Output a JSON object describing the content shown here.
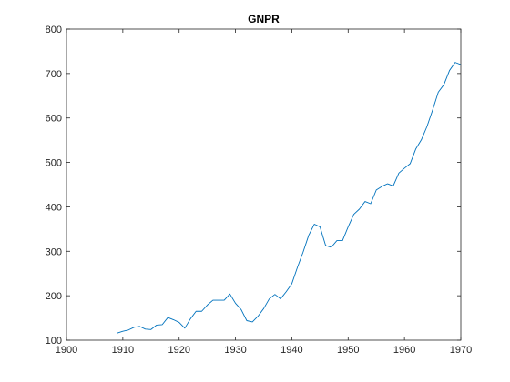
{
  "chart_data": {
    "type": "line",
    "title": "GNPR",
    "xlabel": "",
    "ylabel": "",
    "xlim": [
      1900,
      1970
    ],
    "ylim": [
      100,
      800
    ],
    "xticks": [
      1900,
      1910,
      1920,
      1930,
      1940,
      1950,
      1960,
      1970
    ],
    "yticks": [
      100,
      200,
      300,
      400,
      500,
      600,
      700,
      800
    ],
    "xtick_labels": [
      "1900",
      "1910",
      "1920",
      "1930",
      "1940",
      "1950",
      "1960",
      "1970"
    ],
    "ytick_labels": [
      "100",
      "200",
      "300",
      "400",
      "500",
      "600",
      "700",
      "800"
    ],
    "grid": false,
    "line_color": "#0072BD",
    "series": [
      {
        "x": [
          1909,
          1910,
          1911,
          1912,
          1913,
          1914,
          1915,
          1916,
          1917,
          1918,
          1919,
          1920,
          1921,
          1922,
          1923,
          1924,
          1925,
          1926,
          1927,
          1928,
          1929,
          1930,
          1931,
          1932,
          1933,
          1934,
          1935,
          1936,
          1937,
          1938,
          1939,
          1940,
          1941,
          1942,
          1943,
          1944,
          1945,
          1946,
          1947,
          1948,
          1949,
          1950,
          1951,
          1952,
          1953,
          1954,
          1955,
          1956,
          1957,
          1958,
          1959,
          1960,
          1961,
          1962,
          1963,
          1964,
          1965,
          1966,
          1967,
          1968,
          1969,
          1970
        ],
        "values": [
          116,
          120,
          123,
          129,
          131,
          125,
          124,
          134,
          135,
          151,
          146,
          140,
          127,
          148,
          165,
          165,
          179,
          190,
          190,
          190,
          204,
          183,
          169,
          144,
          141,
          154,
          171,
          193,
          203,
          193,
          209,
          227,
          264,
          298,
          336,
          361,
          355,
          313,
          309,
          324,
          324,
          355,
          383,
          395,
          412,
          407,
          438,
          446,
          452,
          447,
          476,
          487,
          497,
          530,
          551,
          581,
          618,
          658,
          675,
          707,
          725,
          720
        ]
      }
    ]
  }
}
